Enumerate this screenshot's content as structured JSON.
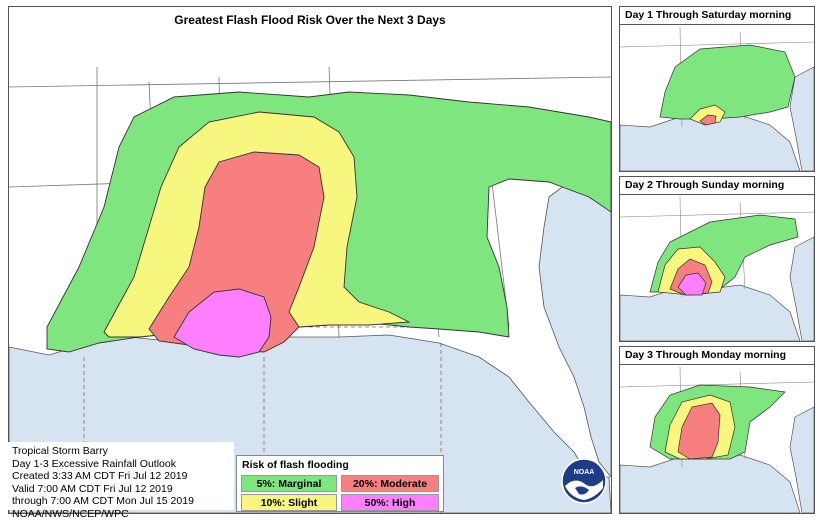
{
  "main": {
    "title": "Greatest Flash Flood Risk Over the Next 3 Days"
  },
  "insets": [
    {
      "title": "Day 1 Through Saturday morning"
    },
    {
      "title": "Day 2 Through Sunday morning"
    },
    {
      "title": "Day 3 Through Monday morning"
    }
  ],
  "info": {
    "lines": [
      "Tropical Storm Barry",
      "Day 1-3 Excessive Rainfall Outlook",
      "Created 3:33 AM CDT Fri Jul 12 2019",
      "Valid 7:00 AM CDT Fri Jul 12 2019",
      "through 7:00 AM CDT Mon Jul 15 2019",
      "NOAA/NWS/NCEP/WPC"
    ]
  },
  "legend": {
    "title": "Risk of flash flooding",
    "items": [
      {
        "label": "5%: Marginal",
        "color": "#7fe57f"
      },
      {
        "label": "10%: Slight",
        "color": "#f7f77f"
      },
      {
        "label": "20%: Moderate",
        "color": "#f77f7f"
      },
      {
        "label": "50%: High",
        "color": "#ff7fff"
      }
    ]
  },
  "logo": {
    "text": "NOAA"
  },
  "colors": {
    "water": "#d6e4f2",
    "land": "#ffffff",
    "border": "#555555"
  }
}
